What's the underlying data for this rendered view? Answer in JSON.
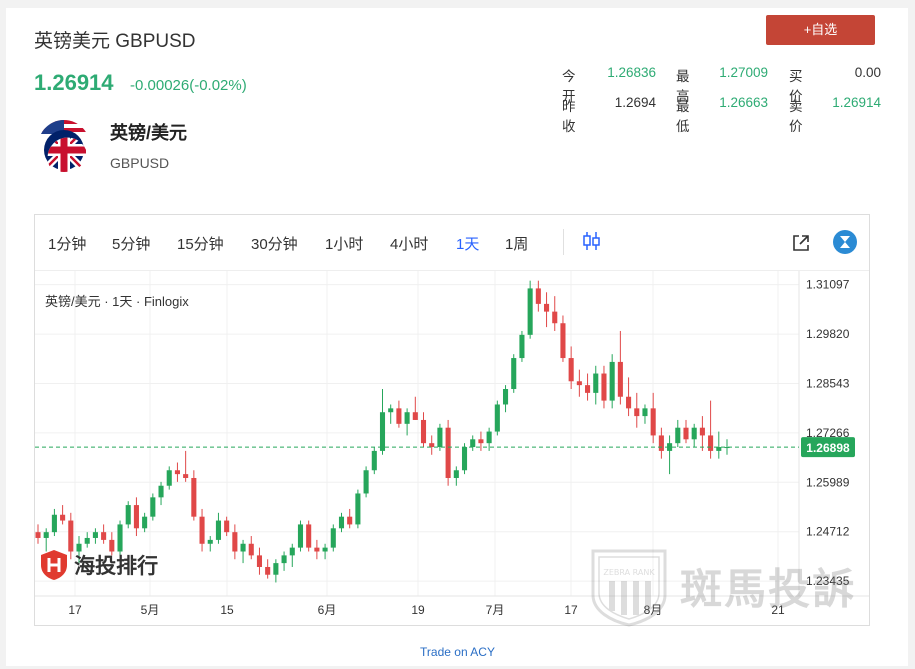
{
  "header": {
    "title": "英镑美元 GBPUSD",
    "price": "1.26914",
    "change": "-0.00026(-0.02%)",
    "add_button": "+自选"
  },
  "quotes": {
    "open_label": "今开",
    "open_value": "1.26836",
    "high_label": "最高",
    "high_value": "1.27009",
    "bid_label": "买价",
    "bid_value": "0.00",
    "prev_close_label": "昨收",
    "prev_close_value": "1.2694",
    "low_label": "最低",
    "low_value": "1.26663",
    "ask_label": "卖价",
    "ask_value": "1.26914"
  },
  "pair": {
    "name": "英镑/美元",
    "code": "GBPUSD"
  },
  "toolbar": {
    "timeframes": [
      "1分钟",
      "5分钟",
      "15分钟",
      "30分钟",
      "1小时",
      "4小时",
      "1天",
      "1周"
    ],
    "active": "1天"
  },
  "chart_data": {
    "type": "candlestick",
    "title": "英镑/美元 · 1天 · Finlogix",
    "current_price_label": "1.26898",
    "y_ticks": [
      "1.31097",
      "1.29820",
      "1.28543",
      "1.27266",
      "1.25989",
      "1.24712",
      "1.23435"
    ],
    "y_tick_values": [
      1.31097,
      1.2982,
      1.28543,
      1.27266,
      1.25989,
      1.24712,
      1.23435
    ],
    "x_ticks": [
      "17",
      "5月",
      "15",
      "6月",
      "19",
      "7月",
      "17",
      "8月",
      "21"
    ],
    "ylim": [
      1.2305,
      1.3145
    ],
    "current_price": 1.26898,
    "candles": [
      [
        1.247,
        1.249,
        1.244,
        1.2455
      ],
      [
        1.2455,
        1.248,
        1.242,
        1.247
      ],
      [
        1.247,
        1.253,
        1.246,
        1.2515
      ],
      [
        1.2515,
        1.254,
        1.249,
        1.25
      ],
      [
        1.25,
        1.252,
        1.24,
        1.242
      ],
      [
        1.242,
        1.246,
        1.239,
        1.244
      ],
      [
        1.244,
        1.247,
        1.243,
        1.2455
      ],
      [
        1.2455,
        1.248,
        1.244,
        1.247
      ],
      [
        1.247,
        1.249,
        1.244,
        1.245
      ],
      [
        1.245,
        1.247,
        1.241,
        1.242
      ],
      [
        1.242,
        1.25,
        1.241,
        1.249
      ],
      [
        1.249,
        1.255,
        1.248,
        1.254
      ],
      [
        1.254,
        1.256,
        1.246,
        1.248
      ],
      [
        1.248,
        1.252,
        1.247,
        1.251
      ],
      [
        1.251,
        1.257,
        1.25,
        1.256
      ],
      [
        1.256,
        1.26,
        1.254,
        1.259
      ],
      [
        1.259,
        1.264,
        1.258,
        1.263
      ],
      [
        1.263,
        1.265,
        1.26,
        1.262
      ],
      [
        1.262,
        1.268,
        1.26,
        1.261
      ],
      [
        1.261,
        1.263,
        1.25,
        1.251
      ],
      [
        1.251,
        1.253,
        1.242,
        1.244
      ],
      [
        1.244,
        1.246,
        1.242,
        1.245
      ],
      [
        1.245,
        1.252,
        1.244,
        1.25
      ],
      [
        1.25,
        1.251,
        1.246,
        1.247
      ],
      [
        1.247,
        1.249,
        1.24,
        1.242
      ],
      [
        1.242,
        1.245,
        1.239,
        1.244
      ],
      [
        1.244,
        1.246,
        1.24,
        1.241
      ],
      [
        1.241,
        1.243,
        1.236,
        1.238
      ],
      [
        1.238,
        1.24,
        1.235,
        1.236
      ],
      [
        1.236,
        1.24,
        1.234,
        1.239
      ],
      [
        1.239,
        1.242,
        1.237,
        1.241
      ],
      [
        1.241,
        1.244,
        1.238,
        1.243
      ],
      [
        1.243,
        1.25,
        1.242,
        1.249
      ],
      [
        1.249,
        1.25,
        1.242,
        1.243
      ],
      [
        1.243,
        1.245,
        1.24,
        1.242
      ],
      [
        1.242,
        1.244,
        1.24,
        1.243
      ],
      [
        1.243,
        1.249,
        1.242,
        1.248
      ],
      [
        1.248,
        1.252,
        1.247,
        1.251
      ],
      [
        1.251,
        1.253,
        1.248,
        1.249
      ],
      [
        1.249,
        1.258,
        1.248,
        1.257
      ],
      [
        1.257,
        1.264,
        1.256,
        1.263
      ],
      [
        1.263,
        1.269,
        1.262,
        1.268
      ],
      [
        1.268,
        1.284,
        1.267,
        1.278
      ],
      [
        1.278,
        1.28,
        1.275,
        1.279
      ],
      [
        1.279,
        1.281,
        1.274,
        1.275
      ],
      [
        1.275,
        1.279,
        1.272,
        1.278
      ],
      [
        1.278,
        1.282,
        1.276,
        1.276
      ],
      [
        1.276,
        1.278,
        1.269,
        1.27
      ],
      [
        1.27,
        1.272,
        1.267,
        1.269
      ],
      [
        1.269,
        1.275,
        1.268,
        1.274
      ],
      [
        1.274,
        1.276,
        1.259,
        1.261
      ],
      [
        1.261,
        1.264,
        1.259,
        1.263
      ],
      [
        1.263,
        1.27,
        1.262,
        1.269
      ],
      [
        1.269,
        1.272,
        1.268,
        1.271
      ],
      [
        1.271,
        1.273,
        1.268,
        1.27
      ],
      [
        1.27,
        1.274,
        1.268,
        1.273
      ],
      [
        1.273,
        1.281,
        1.272,
        1.28
      ],
      [
        1.28,
        1.285,
        1.278,
        1.284
      ],
      [
        1.284,
        1.293,
        1.283,
        1.292
      ],
      [
        1.292,
        1.299,
        1.291,
        1.298
      ],
      [
        1.298,
        1.312,
        1.297,
        1.31
      ],
      [
        1.31,
        1.312,
        1.304,
        1.306
      ],
      [
        1.306,
        1.309,
        1.3,
        1.304
      ],
      [
        1.304,
        1.308,
        1.299,
        1.301
      ],
      [
        1.301,
        1.303,
        1.291,
        1.292
      ],
      [
        1.292,
        1.295,
        1.284,
        1.286
      ],
      [
        1.286,
        1.289,
        1.282,
        1.285
      ],
      [
        1.285,
        1.288,
        1.281,
        1.283
      ],
      [
        1.283,
        1.29,
        1.28,
        1.288
      ],
      [
        1.288,
        1.29,
        1.279,
        1.281
      ],
      [
        1.281,
        1.293,
        1.279,
        1.291
      ],
      [
        1.291,
        1.299,
        1.28,
        1.282
      ],
      [
        1.282,
        1.287,
        1.277,
        1.279
      ],
      [
        1.279,
        1.283,
        1.274,
        1.277
      ],
      [
        1.277,
        1.28,
        1.275,
        1.279
      ],
      [
        1.279,
        1.283,
        1.27,
        1.272
      ],
      [
        1.272,
        1.274,
        1.266,
        1.268
      ],
      [
        1.268,
        1.272,
        1.262,
        1.27
      ],
      [
        1.27,
        1.276,
        1.269,
        1.274
      ],
      [
        1.274,
        1.276,
        1.27,
        1.271
      ],
      [
        1.271,
        1.275,
        1.269,
        1.274
      ],
      [
        1.274,
        1.277,
        1.268,
        1.272
      ],
      [
        1.272,
        1.281,
        1.266,
        1.268
      ],
      [
        1.268,
        1.273,
        1.266,
        1.269
      ],
      [
        1.269,
        1.271,
        1.267,
        1.269
      ]
    ]
  },
  "watermarks": {
    "left_text": "海投排行",
    "right_text": "斑馬投訴",
    "right_badge": "ZEBRA RANK"
  },
  "footer": {
    "link": "Trade on ACY"
  },
  "colors": {
    "up": "#26a65b",
    "down": "#e04848",
    "price_green": "#2eab74",
    "accent": "#2962ff",
    "button_red": "#c44536"
  }
}
